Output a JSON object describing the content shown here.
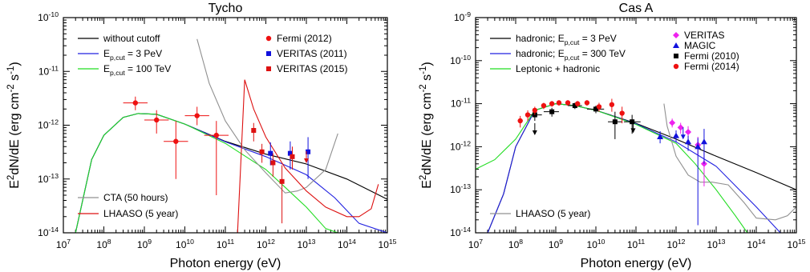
{
  "chart_data": [
    {
      "type": "line",
      "title": "Tycho",
      "xlabel": "Photon energy (eV)",
      "ylabel": "E2dN/dE (erg cm-2 s-1)",
      "xscale": "log",
      "yscale": "log",
      "xlim": [
        10000000.0,
        1000000000000000.0
      ],
      "ylim": [
        1e-14,
        1e-10
      ],
      "x_ticks": [
        "10^7",
        "10^8",
        "10^9",
        "10^10",
        "10^11",
        "10^12",
        "10^13",
        "10^14",
        "10^15"
      ],
      "y_ticks": [
        "10^-14",
        "10^-13",
        "10^-12",
        "10^-11",
        "10^-10"
      ],
      "legend_left": [
        "without cutoff",
        "E_p,cut = 3 PeV",
        "E_p,cut = 100 TeV"
      ],
      "legend_right": [
        "Fermi (2012)",
        "VERITAS (2011)",
        "VERITAS (2015)"
      ],
      "legend_sensitivity": [
        "CTA (50 hours)",
        "LHAASO (5 year)"
      ],
      "colors": {
        "without_cutoff": "#000000",
        "cut_3pev": "#2020e0",
        "cut_100tev": "#22dd22",
        "cta": "#909090",
        "lhaaso": "#dd1111",
        "fermi": "#ee1111",
        "veritas2011": "#1111dd",
        "veritas2015": "#dd1111"
      },
      "series": [
        {
          "name": "without cutoff",
          "color": "#000000",
          "x": [
            20000000.0,
            50000000.0,
            100000000.0,
            300000000.0,
            700000000.0,
            2000000000.0,
            10000000000.0,
            100000000000.0,
            1000000000000.0,
            10000000000000.0,
            100000000000000.0,
            1000000000000000.0
          ],
          "y": [
            1e-14,
            2.3e-13,
            6.5e-13,
            1.4e-12,
            1.65e-12,
            1.6e-12,
            1.05e-12,
            5e-13,
            2.9e-13,
            1.9e-13,
            1e-13,
            4.2e-14
          ]
        },
        {
          "name": "E_p,cut = 3 PeV",
          "color": "#2020e0",
          "x": [
            20000000.0,
            50000000.0,
            100000000.0,
            300000000.0,
            700000000.0,
            2000000000.0,
            10000000000.0,
            100000000000.0,
            1000000000000.0,
            10000000000000.0,
            50000000000000.0,
            200000000000000.0,
            1000000000000000.0
          ],
          "y": [
            1e-14,
            2.3e-13,
            6.5e-13,
            1.4e-12,
            1.65e-12,
            1.6e-12,
            1.05e-12,
            4.9e-13,
            2.6e-13,
            1.2e-13,
            4.5e-14,
            1.5e-14,
            1e-14
          ]
        },
        {
          "name": "E_p,cut = 100 TeV",
          "color": "#22dd22",
          "x": [
            20000000.0,
            50000000.0,
            100000000.0,
            300000000.0,
            700000000.0,
            2000000000.0,
            10000000000.0,
            100000000000.0,
            1000000000000.0,
            3000000000000.0,
            10000000000000.0,
            30000000000000.0,
            60000000000000.0
          ],
          "y": [
            1e-14,
            2.3e-13,
            6.5e-13,
            1.4e-12,
            1.65e-12,
            1.6e-12,
            1.05e-12,
            4.6e-13,
            1.5e-13,
            7e-14,
            3e-14,
            1.2e-14,
            1e-14
          ]
        },
        {
          "name": "CTA (50 hours)",
          "color": "#909090",
          "x": [
            20000000000.0,
            40000000000.0,
            100000000000.0,
            300000000000.0,
            1000000000000.0,
            3000000000000.0,
            6000000000000.0,
            10000000000000.0,
            30000000000000.0,
            60000000000000.0
          ],
          "y": [
            4e-11,
            6e-12,
            1.2e-12,
            3.5e-13,
            1.3e-13,
            5.5e-14,
            6e-14,
            7e-14,
            1.5e-13,
            7e-13
          ]
        },
        {
          "name": "LHAASO (5 year)",
          "color": "#dd1111",
          "x": [
            200000000000.0,
            300000000000.0,
            500000000000.0,
            1000000000000.0,
            3000000000000.0,
            10000000000000.0,
            30000000000000.0,
            100000000000000.0,
            200000000000000.0,
            400000000000000.0,
            600000000000000.0
          ],
          "y": [
            1e-14,
            7e-12,
            2e-12,
            6e-13,
            1.6e-13,
            6e-14,
            3e-14,
            2e-14,
            2e-14,
            2.8e-14,
            8e-14
          ]
        }
      ],
      "points": [
        {
          "name": "Fermi (2012)",
          "marker": "circle",
          "color": "#ee1111",
          "data": [
            {
              "x": 600000000.0,
              "y": 2.6e-12,
              "xlo": 300000000.0,
              "xhi": 1200000000.0,
              "ylo": 1.9e-12,
              "yhi": 3.4e-12
            },
            {
              "x": 2000000000.0,
              "y": 1.25e-12,
              "xlo": 1000000000.0,
              "xhi": 4000000000.0,
              "ylo": 7e-13,
              "yhi": 1.9e-12
            },
            {
              "x": 6000000000.0,
              "y": 5e-13,
              "xlo": 3000000000.0,
              "xhi": 12000000000.0,
              "ylo": 1e-13,
              "yhi": 1.2e-12
            },
            {
              "x": 20000000000.0,
              "y": 1.5e-12,
              "xlo": 10000000000.0,
              "xhi": 40000000000.0,
              "ylo": 1e-12,
              "yhi": 2.2e-12
            },
            {
              "x": 60000000000.0,
              "y": 6.5e-13,
              "xlo": 30000000000.0,
              "xhi": 120000000000.0,
              "ylo": 5e-14,
              "yhi": 1.2e-12
            }
          ]
        },
        {
          "name": "VERITAS (2011)",
          "marker": "square",
          "color": "#1111dd",
          "data": [
            {
              "x": 1300000000000.0,
              "y": 3e-13,
              "ylo": 1.8e-13,
              "yhi": 4.8e-13
            },
            {
              "x": 4000000000000.0,
              "y": 3e-13,
              "ylo": 1.5e-13,
              "yhi": 5e-13
            },
            {
              "x": 11000000000000.0,
              "y": 3.2e-13,
              "ylo": 1e-13,
              "yhi": 6e-13
            }
          ]
        },
        {
          "name": "VERITAS (2015)",
          "marker": "square",
          "color": "#dd1111",
          "data": [
            {
              "x": 500000000000.0,
              "y": 8e-13,
              "ylo": 5e-13,
              "yhi": 1.1e-12
            },
            {
              "x": 800000000000.0,
              "y": 3.2e-13,
              "ylo": 2e-13,
              "yhi": 4.5e-13
            },
            {
              "x": 1500000000000.0,
              "y": 2e-13,
              "ylo": 1.1e-13,
              "yhi": 3e-13
            },
            {
              "x": 2500000000000.0,
              "y": 9e-14,
              "ylo": 1.5e-14,
              "yhi": 1.8e-13
            },
            {
              "x": 4500000000000.0,
              "y": 2.6e-13,
              "ylo": 1.5e-13,
              "yhi": 4e-13
            }
          ]
        }
      ],
      "upper_limits": [
        {
          "x": 10000000000000.0,
          "y": 2.5e-13,
          "color": "#dd1111"
        }
      ]
    },
    {
      "type": "line",
      "title": "Cas A",
      "xlabel": "Photon energy (eV)",
      "ylabel": "E2dN/dE (erg cm-2 s-1)",
      "xscale": "log",
      "yscale": "log",
      "xlim": [
        10000000.0,
        1000000000000000.0
      ],
      "ylim": [
        1e-14,
        1e-09
      ],
      "x_ticks": [
        "10^7",
        "10^8",
        "10^9",
        "10^10",
        "10^11",
        "10^12",
        "10^13",
        "10^14",
        "10^15"
      ],
      "y_ticks": [
        "10^-14",
        "10^-13",
        "10^-12",
        "10^-11",
        "10^-10",
        "10^-9"
      ],
      "legend_left": [
        "hadronic; E_p,cut = 3 PeV",
        "hadronic; E_p,cut = 300 TeV",
        "Leptonic + hadronic"
      ],
      "legend_right": [
        "VERITAS",
        "MAGIC",
        "Fermi (2010)",
        "Fermi (2014)"
      ],
      "legend_sensitivity": [
        "LHAASO (5 year)"
      ],
      "colors": {
        "had_3pev": "#000000",
        "had_300tev": "#2020e0",
        "lep_had": "#22dd22",
        "lhaaso": "#909090",
        "veritas": "#ee22ee",
        "magic": "#1111dd",
        "fermi2010": "#000000",
        "fermi2014": "#ee1111"
      },
      "series": [
        {
          "name": "hadronic; E_p,cut = 3 PeV",
          "color": "#000000",
          "x": [
            20000000.0,
            50000000.0,
            100000000.0,
            300000000.0,
            1000000000.0,
            3000000000.0,
            10000000000.0,
            100000000000.0,
            1000000000000.0,
            10000000000000.0,
            100000000000000.0,
            1000000000000000.0
          ],
          "y": [
            1e-14,
            8e-14,
            1e-12,
            7e-12,
            1e-11,
            9e-12,
            7e-12,
            3.5e-12,
            1.5e-12,
            6e-13,
            2.5e-13,
            1e-13
          ]
        },
        {
          "name": "hadronic; E_p,cut = 300 TeV",
          "color": "#2020e0",
          "x": [
            20000000.0,
            50000000.0,
            100000000.0,
            300000000.0,
            1000000000.0,
            3000000000.0,
            10000000000.0,
            100000000000.0,
            1000000000000.0,
            10000000000000.0,
            100000000000000.0,
            400000000000000.0
          ],
          "y": [
            1e-14,
            8e-14,
            1e-12,
            7e-12,
            1e-11,
            9e-12,
            7e-12,
            3.4e-12,
            1.3e-12,
            3.5e-13,
            4e-14,
            1e-14
          ]
        },
        {
          "name": "Leptonic + hadronic",
          "color": "#22dd22",
          "x": [
            10000000.0,
            30000000.0,
            100000000.0,
            300000000.0,
            1000000000.0,
            3000000000.0,
            10000000000.0,
            100000000000.0,
            1000000000000.0,
            3000000000000.0,
            10000000000000.0,
            30000000000000.0,
            60000000000000.0
          ],
          "y": [
            3e-13,
            5e-13,
            1.5e-12,
            7e-12,
            1e-11,
            9e-12,
            7e-12,
            3.3e-12,
            1.2e-12,
            4e-13,
            1e-13,
            2.5e-14,
            1e-14
          ]
        },
        {
          "name": "LHAASO (5 year)",
          "color": "#909090",
          "x": [
            500000000000.0,
            600000000000.0,
            1000000000000.0,
            2000000000000.0,
            4000000000000.0,
            8000000000000.0,
            20000000000000.0,
            50000000000000.0,
            100000000000000.0,
            300000000000000.0,
            600000000000000.0,
            1000000000000000.0
          ],
          "y": [
            1e-11,
            3e-12,
            6e-13,
            2.2e-13,
            1.5e-13,
            1.5e-13,
            1.3e-13,
            5e-14,
            2.2e-14,
            2e-14,
            2.5e-14,
            4e-14
          ]
        }
      ],
      "points": [
        {
          "name": "VERITAS",
          "marker": "diamond",
          "color": "#ee22ee",
          "data": [
            {
              "x": 800000000000.0,
              "y": 3.6e-12,
              "ylo": 2.8e-12,
              "yhi": 4.5e-12
            },
            {
              "x": 1300000000000.0,
              "y": 2.8e-12,
              "ylo": 2e-12,
              "yhi": 3.6e-12
            },
            {
              "x": 2000000000000.0,
              "y": 2.2e-12,
              "ylo": 1.5e-12,
              "yhi": 3e-12
            },
            {
              "x": 3500000000000.0,
              "y": 1.1e-12,
              "ylo": 6e-13,
              "yhi": 1.7e-12
            },
            {
              "x": 5000000000000.0,
              "y": 4e-13,
              "ylo": 1.2e-13,
              "yhi": 8e-13
            }
          ]
        },
        {
          "name": "MAGIC",
          "marker": "triangle",
          "color": "#1111dd",
          "data": [
            {
              "x": 400000000000.0,
              "y": 1.7e-12,
              "ylo": 1.2e-12,
              "yhi": 2.3e-12
            },
            {
              "x": 1000000000000.0,
              "y": 1.8e-12,
              "ylo": 1.3e-12,
              "yhi": 2.4e-12
            },
            {
              "x": 2000000000000.0,
              "y": 1.3e-12,
              "ylo": 8e-13,
              "yhi": 1.8e-12
            },
            {
              "x": 3500000000000.0,
              "y": 1e-12,
              "ylo": 1.5e-14,
              "yhi": 1.6e-12
            },
            {
              "x": 5000000000000.0,
              "y": 1.3e-12,
              "ylo": 4e-13,
              "yhi": 2.6e-12
            }
          ]
        },
        {
          "name": "Fermi (2010)",
          "marker": "square",
          "color": "#000000",
          "data": [
            {
              "x": 300000000.0,
              "y": 5.5e-12,
              "xlo": 200000000.0,
              "xhi": 450000000.0,
              "ylo": 4e-12,
              "yhi": 7e-12
            },
            {
              "x": 800000000.0,
              "y": 6.5e-12,
              "xlo": 500000000.0,
              "xhi": 1200000000.0,
              "ylo": 5e-12,
              "yhi": 8e-12
            },
            {
              "x": 3000000000.0,
              "y": 9e-12,
              "xlo": 2000000000.0,
              "xhi": 4500000000.0,
              "ylo": 7.5e-12,
              "yhi": 1.05e-11
            },
            {
              "x": 10000000000.0,
              "y": 7.5e-12,
              "xlo": 6000000000.0,
              "xhi": 16000000000.0,
              "ylo": 6e-12,
              "yhi": 9e-12
            },
            {
              "x": 30000000000.0,
              "y": 3.8e-12,
              "xlo": 20000000000.0,
              "xhi": 45000000000.0,
              "ylo": 1.5e-12,
              "yhi": 6.5e-12
            },
            {
              "x": 80000000000.0,
              "y": 3.8e-12,
              "xlo": 50000000000.0,
              "xhi": 130000000000.0,
              "ylo": 2e-12,
              "yhi": 5.5e-12
            }
          ]
        },
        {
          "name": "Fermi (2014)",
          "marker": "circle",
          "color": "#ee1111",
          "data": [
            {
              "x": 130000000.0,
              "y": 4e-12,
              "ylo": 2.8e-12,
              "yhi": 5.2e-12
            },
            {
              "x": 200000000.0,
              "y": 5.5e-12,
              "ylo": 4e-12,
              "yhi": 7e-12
            },
            {
              "x": 300000000.0,
              "y": 7e-12,
              "ylo": 5.5e-12,
              "yhi": 8.5e-12
            },
            {
              "x": 500000000.0,
              "y": 9e-12,
              "ylo": 7.5e-12,
              "yhi": 1.05e-11
            },
            {
              "x": 800000000.0,
              "y": 1e-11,
              "ylo": 8.5e-12,
              "yhi": 1.15e-11
            },
            {
              "x": 1200000000.0,
              "y": 1.05e-11,
              "ylo": 9e-12,
              "yhi": 1.2e-11
            },
            {
              "x": 2000000000.0,
              "y": 1.05e-11,
              "ylo": 9e-12,
              "yhi": 1.2e-11
            },
            {
              "x": 3500000000.0,
              "y": 1e-11,
              "ylo": 8.5e-12,
              "yhi": 1.15e-11
            },
            {
              "x": 6000000000.0,
              "y": 1.05e-11,
              "ylo": 9e-12,
              "yhi": 1.2e-11
            },
            {
              "x": 12000000000.0,
              "y": 8.5e-12,
              "ylo": 6.5e-12,
              "yhi": 1.05e-11
            },
            {
              "x": 25000000000.0,
              "y": 9.5e-12,
              "ylo": 6.5e-12,
              "yhi": 1.3e-11
            },
            {
              "x": 45000000000.0,
              "y": 6e-12,
              "ylo": 3.5e-12,
              "yhi": 8.5e-12
            }
          ]
        }
      ],
      "upper_limits": [
        {
          "x": 300000000.0,
          "y": 2.5e-12,
          "color": "#000000"
        },
        {
          "x": 85000000000.0,
          "y": 2.8e-12,
          "color": "#000000"
        },
        {
          "x": 1500000000000.0,
          "y": 2e-12,
          "color": "#1111dd"
        }
      ]
    }
  ]
}
